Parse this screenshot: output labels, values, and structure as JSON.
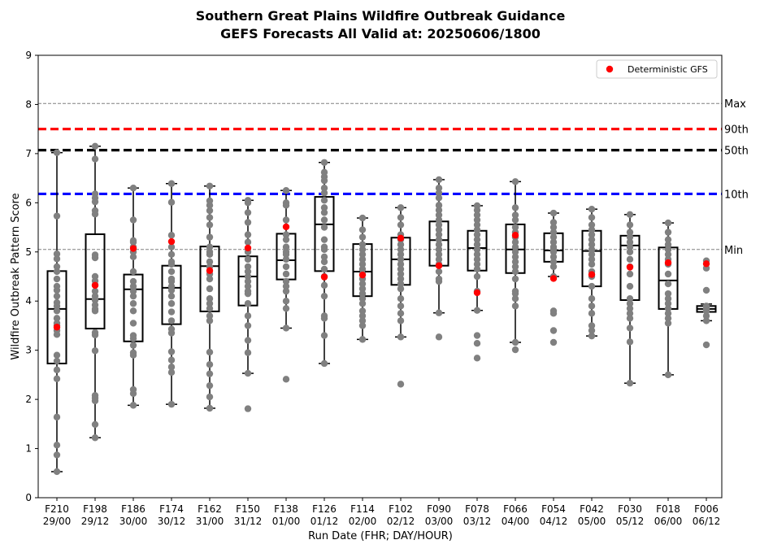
{
  "chart_data": {
    "type": "box",
    "title": "Southern Great Plains Wildfire Outbreak Guidance",
    "subtitle": "GEFS Forecasts All Valid at: 20250606/1800",
    "xlabel": "Run Date (FHR; DAY/HOUR)",
    "ylabel": "Wildfire Outbreak Pattern Score",
    "ylim": [
      0,
      9
    ],
    "yticks": [
      "0",
      "1",
      "2",
      "3",
      "4",
      "5",
      "6",
      "7",
      "8",
      "9"
    ],
    "grid": false,
    "legend": {
      "position": "top-right",
      "entries": [
        "Deterministic GFS"
      ]
    },
    "colors": {
      "ensemble": "#808080",
      "deterministic": "#ff0000",
      "box": "#000000",
      "p90": "#ff0000",
      "p50": "#000000",
      "p10": "#0000ff",
      "minmax": "#808080"
    },
    "reference_lines": [
      {
        "label": "Max",
        "value": 8.02,
        "style": "dashed-thin",
        "color": "#808080"
      },
      {
        "label": "90th",
        "value": 7.5,
        "style": "dashed-thick",
        "color": "#ff0000"
      },
      {
        "label": "50th",
        "value": 7.07,
        "style": "dashed-thick",
        "color": "#000000"
      },
      {
        "label": "10th",
        "value": 6.18,
        "style": "dashed-thick",
        "color": "#0000ff"
      },
      {
        "label": "Min",
        "value": 5.05,
        "style": "dashed-thin",
        "color": "#808080"
      }
    ],
    "categories": [
      {
        "fhr": "F210",
        "date": "29/00"
      },
      {
        "fhr": "F198",
        "date": "29/12"
      },
      {
        "fhr": "F186",
        "date": "30/00"
      },
      {
        "fhr": "F174",
        "date": "30/12"
      },
      {
        "fhr": "F162",
        "date": "31/00"
      },
      {
        "fhr": "F150",
        "date": "31/12"
      },
      {
        "fhr": "F138",
        "date": "01/00"
      },
      {
        "fhr": "F126",
        "date": "01/12"
      },
      {
        "fhr": "F114",
        "date": "02/00"
      },
      {
        "fhr": "F102",
        "date": "02/12"
      },
      {
        "fhr": "F090",
        "date": "03/00"
      },
      {
        "fhr": "F078",
        "date": "03/12"
      },
      {
        "fhr": "F066",
        "date": "04/00"
      },
      {
        "fhr": "F054",
        "date": "04/12"
      },
      {
        "fhr": "F042",
        "date": "05/00"
      },
      {
        "fhr": "F030",
        "date": "05/12"
      },
      {
        "fhr": "F018",
        "date": "06/00"
      },
      {
        "fhr": "F006",
        "date": "06/12"
      }
    ],
    "boxes": [
      {
        "min": 0.53,
        "q1": 2.73,
        "median": 3.84,
        "q3": 4.61,
        "max": 7.02,
        "deterministic": 3.47,
        "members": [
          0.53,
          0.87,
          1.07,
          1.64,
          2.42,
          2.6,
          2.78,
          2.9,
          3.32,
          3.4,
          3.5,
          3.55,
          3.65,
          3.8,
          3.9,
          3.97,
          4.1,
          4.22,
          4.3,
          4.45,
          4.6,
          4.7,
          4.86,
          4.96,
          5.73,
          7.02
        ]
      },
      {
        "min": 1.22,
        "q1": 3.44,
        "median": 4.04,
        "q3": 5.36,
        "max": 7.15,
        "deterministic": 4.32,
        "members": [
          1.22,
          1.49,
          1.97,
          2.03,
          2.08,
          2.99,
          3.31,
          3.36,
          3.8,
          3.84,
          3.92,
          4.02,
          4.1,
          4.2,
          4.33,
          4.41,
          4.5,
          4.88,
          4.94,
          5.77,
          5.84,
          6.02,
          6.1,
          6.18,
          6.89,
          7.15
        ]
      },
      {
        "min": 1.88,
        "q1": 3.18,
        "median": 4.24,
        "q3": 4.54,
        "max": 6.3,
        "deterministic": 5.07,
        "members": [
          1.88,
          2.12,
          2.2,
          2.9,
          2.95,
          3.1,
          3.24,
          3.3,
          3.55,
          3.8,
          3.95,
          4.1,
          4.2,
          4.3,
          4.4,
          4.6,
          4.9,
          5.0,
          5.1,
          5.2,
          5.23,
          5.65,
          6.3
        ]
      },
      {
        "min": 1.9,
        "q1": 3.53,
        "median": 4.27,
        "q3": 4.72,
        "max": 6.39,
        "deterministic": 5.21,
        "members": [
          1.9,
          2.55,
          2.66,
          2.8,
          2.97,
          3.35,
          3.43,
          3.6,
          3.78,
          3.95,
          4.1,
          4.22,
          4.3,
          4.4,
          4.45,
          4.6,
          4.75,
          4.8,
          4.95,
          5.1,
          5.34,
          6.01,
          6.39
        ]
      },
      {
        "min": 1.82,
        "q1": 3.79,
        "median": 4.71,
        "q3": 5.11,
        "max": 6.34,
        "deterministic": 4.62,
        "members": [
          1.82,
          2.05,
          2.28,
          2.52,
          2.71,
          2.96,
          3.6,
          3.7,
          3.85,
          3.95,
          4.05,
          4.25,
          4.45,
          4.55,
          4.7,
          4.8,
          4.95,
          5.0,
          5.1,
          5.3,
          5.55,
          5.7,
          5.84,
          5.95,
          6.04,
          6.34
        ]
      },
      {
        "min": 2.53,
        "q1": 3.91,
        "median": 4.5,
        "q3": 4.91,
        "max": 6.05,
        "deterministic": 5.08,
        "members": [
          1.81,
          2.53,
          2.95,
          3.2,
          3.5,
          3.7,
          3.95,
          4.15,
          4.2,
          4.3,
          4.4,
          4.5,
          4.6,
          4.7,
          4.85,
          5.0,
          5.2,
          5.35,
          5.6,
          5.8,
          6.0,
          6.05
        ]
      },
      {
        "min": 3.45,
        "q1": 4.44,
        "median": 4.83,
        "q3": 5.37,
        "max": 6.25,
        "deterministic": 5.51,
        "members": [
          2.41,
          3.45,
          3.85,
          4.0,
          4.2,
          4.3,
          4.4,
          4.55,
          4.7,
          4.85,
          4.95,
          5.0,
          5.1,
          5.25,
          5.35,
          5.65,
          5.95,
          6.0,
          6.25
        ]
      },
      {
        "min": 2.73,
        "q1": 4.61,
        "median": 5.56,
        "q3": 6.12,
        "max": 6.82,
        "deterministic": 4.49,
        "members": [
          2.73,
          3.3,
          3.65,
          3.7,
          4.1,
          4.32,
          4.5,
          4.65,
          4.8,
          4.9,
          5.05,
          5.1,
          5.25,
          5.5,
          5.65,
          5.8,
          5.9,
          6.05,
          6.2,
          6.3,
          6.45,
          6.53,
          6.62,
          6.82
        ]
      },
      {
        "min": 3.22,
        "q1": 4.1,
        "median": 4.6,
        "q3": 5.16,
        "max": 5.69,
        "deterministic": 4.53,
        "members": [
          3.22,
          3.5,
          3.6,
          3.7,
          3.8,
          3.95,
          4.05,
          4.15,
          4.25,
          4.35,
          4.45,
          4.55,
          4.65,
          4.75,
          4.85,
          4.95,
          5.05,
          5.15,
          5.3,
          5.45,
          5.69
        ]
      },
      {
        "min": 3.27,
        "q1": 4.33,
        "median": 4.85,
        "q3": 5.29,
        "max": 5.9,
        "deterministic": 5.28,
        "members": [
          2.31,
          3.27,
          3.6,
          3.75,
          3.9,
          4.05,
          4.25,
          4.35,
          4.45,
          4.55,
          4.65,
          4.75,
          4.85,
          4.95,
          5.05,
          5.15,
          5.25,
          5.35,
          5.55,
          5.7,
          5.9
        ]
      },
      {
        "min": 3.76,
        "q1": 4.72,
        "median": 5.24,
        "q3": 5.62,
        "max": 6.47,
        "deterministic": 4.72,
        "members": [
          3.27,
          3.76,
          4.4,
          4.45,
          4.6,
          4.75,
          4.85,
          4.95,
          5.05,
          5.15,
          5.25,
          5.35,
          5.45,
          5.55,
          5.65,
          5.75,
          5.85,
          5.95,
          6.1,
          6.2,
          6.3,
          6.47
        ]
      },
      {
        "min": 3.81,
        "q1": 4.62,
        "median": 5.08,
        "q3": 5.43,
        "max": 5.94,
        "deterministic": 4.17,
        "members": [
          2.84,
          3.14,
          3.3,
          3.81,
          4.2,
          4.5,
          4.65,
          4.75,
          4.85,
          4.95,
          5.05,
          5.15,
          5.25,
          5.35,
          5.45,
          5.55,
          5.65,
          5.75,
          5.85,
          5.94
        ]
      },
      {
        "min": 3.16,
        "q1": 4.57,
        "median": 5.05,
        "q3": 5.56,
        "max": 6.43,
        "deterministic": 5.34,
        "members": [
          3.01,
          3.16,
          3.9,
          4.05,
          4.15,
          4.2,
          4.45,
          4.6,
          4.7,
          4.8,
          4.9,
          5.0,
          5.1,
          5.2,
          5.3,
          5.4,
          5.5,
          5.65,
          5.75,
          5.9,
          6.43
        ]
      },
      {
        "min": 4.5,
        "q1": 4.8,
        "median": 5.03,
        "q3": 5.38,
        "max": 5.79,
        "deterministic": 4.46,
        "members": [
          3.16,
          3.4,
          3.75,
          3.8,
          4.5,
          4.7,
          4.8,
          4.9,
          5.0,
          5.05,
          5.1,
          5.2,
          5.3,
          5.4,
          5.5,
          5.6,
          5.79
        ]
      },
      {
        "min": 3.29,
        "q1": 4.3,
        "median": 5.02,
        "q3": 5.43,
        "max": 5.87,
        "deterministic": 4.54,
        "members": [
          3.29,
          3.4,
          3.5,
          3.75,
          3.9,
          4.05,
          4.3,
          4.5,
          4.6,
          4.75,
          4.85,
          4.95,
          5.05,
          5.15,
          5.25,
          5.35,
          5.45,
          5.55,
          5.7,
          5.87
        ]
      },
      {
        "min": 2.33,
        "q1": 4.02,
        "median": 5.13,
        "q3": 5.33,
        "max": 5.76,
        "deterministic": 4.69,
        "members": [
          2.33,
          3.17,
          3.45,
          3.65,
          3.75,
          3.85,
          3.95,
          4.05,
          4.3,
          4.55,
          4.7,
          4.85,
          5.0,
          5.1,
          5.2,
          5.3,
          5.4,
          5.55,
          5.76
        ]
      },
      {
        "min": 2.5,
        "q1": 3.84,
        "median": 4.42,
        "q3": 5.09,
        "max": 5.59,
        "deterministic": 4.78,
        "members": [
          2.5,
          3.55,
          3.65,
          3.75,
          3.85,
          3.95,
          4.05,
          4.15,
          4.35,
          4.55,
          4.75,
          4.85,
          4.95,
          5.05,
          5.15,
          5.25,
          5.4,
          5.59
        ]
      },
      {
        "min": 3.6,
        "q1": 3.78,
        "median": 3.84,
        "q3": 3.9,
        "max": 3.94,
        "deterministic": 4.76,
        "members": [
          3.11,
          3.6,
          3.7,
          3.8,
          3.85,
          3.9,
          4.22,
          4.67,
          4.82
        ]
      }
    ]
  }
}
